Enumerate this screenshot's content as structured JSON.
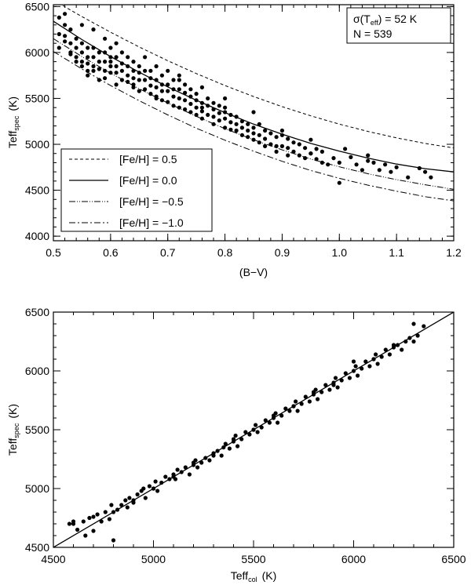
{
  "chart_data": [
    {
      "type": "scatter",
      "xlabel": "(B−V)",
      "ylabel_main": "Teff",
      "ylabel_sub": "spec",
      "ylabel_unit": "(K)",
      "xlim": [
        0.5,
        1.2
      ],
      "ylim": [
        3950,
        6520
      ],
      "x_ticks": [
        0.5,
        0.6,
        0.7,
        0.8,
        0.9,
        1.0,
        1.1,
        1.2
      ],
      "x_tick_labels": [
        "0.5",
        "0.6",
        "0.7",
        "0.8",
        "0.9",
        "1.0",
        "1.1",
        "1.2"
      ],
      "y_ticks": [
        4000,
        4500,
        5000,
        5500,
        6000,
        6500
      ],
      "y_tick_labels": [
        "4000",
        "4500",
        "5000",
        "5500",
        "6000",
        "6500"
      ],
      "annotation_sigma_prefix": "σ(T",
      "annotation_sigma_sub": "eff",
      "annotation_sigma_suffix": ") = 52 K",
      "annotation_n": "N = 539",
      "legend_position": "lower-left",
      "legend": [
        {
          "label": "[Fe/H] = 0.5",
          "dash": "dashed"
        },
        {
          "label": "[Fe/H] = 0.0",
          "dash": "solid"
        },
        {
          "label": "[Fe/H] = −0.5",
          "dash": "dash-dot-dot"
        },
        {
          "label": "[Fe/H] = −1.0",
          "dash": "dash-dot"
        }
      ],
      "lines": [
        {
          "feh": 0.5,
          "dash": "dashed",
          "x": [
            0.5,
            0.55,
            0.6,
            0.65,
            0.7,
            0.75,
            0.8,
            0.85,
            0.9,
            0.95,
            1.0,
            1.05,
            1.1,
            1.15,
            1.2
          ],
          "y": [
            6570,
            6390,
            6220,
            6060,
            5910,
            5770,
            5640,
            5520,
            5410,
            5310,
            5220,
            5140,
            5070,
            5010,
            4960
          ]
        },
        {
          "feh": 0.0,
          "dash": "solid",
          "x": [
            0.5,
            0.55,
            0.6,
            0.65,
            0.7,
            0.75,
            0.8,
            0.85,
            0.9,
            0.95,
            1.0,
            1.05,
            1.1,
            1.15,
            1.2
          ],
          "y": [
            6340,
            6140,
            5955,
            5785,
            5625,
            5480,
            5345,
            5220,
            5110,
            5010,
            4925,
            4850,
            4785,
            4735,
            4700
          ]
        },
        {
          "feh": -0.5,
          "dash": "dash-dot-dot",
          "x": [
            0.5,
            0.55,
            0.6,
            0.65,
            0.7,
            0.75,
            0.8,
            0.85,
            0.9,
            0.95,
            1.0,
            1.05,
            1.1,
            1.15,
            1.2
          ],
          "y": [
            6150,
            5955,
            5775,
            5605,
            5450,
            5305,
            5170,
            5050,
            4940,
            4840,
            4755,
            4680,
            4615,
            4560,
            4510
          ]
        },
        {
          "feh": -1.0,
          "dash": "dash-dot",
          "x": [
            0.5,
            0.55,
            0.6,
            0.65,
            0.7,
            0.75,
            0.8,
            0.85,
            0.9,
            0.95,
            1.0,
            1.05,
            1.1,
            1.15,
            1.2
          ],
          "y": [
            6010,
            5820,
            5640,
            5475,
            5320,
            5175,
            5045,
            4925,
            4815,
            4715,
            4630,
            4555,
            4490,
            4430,
            4385
          ]
        }
      ],
      "points_x": [
        0.51,
        0.51,
        0.51,
        0.52,
        0.52,
        0.52,
        0.52,
        0.53,
        0.53,
        0.53,
        0.53,
        0.54,
        0.54,
        0.54,
        0.54,
        0.55,
        0.55,
        0.55,
        0.55,
        0.55,
        0.56,
        0.56,
        0.56,
        0.56,
        0.57,
        0.57,
        0.57,
        0.57,
        0.57,
        0.58,
        0.58,
        0.58,
        0.58,
        0.59,
        0.59,
        0.59,
        0.59,
        0.59,
        0.6,
        0.6,
        0.6,
        0.6,
        0.61,
        0.61,
        0.61,
        0.61,
        0.61,
        0.62,
        0.62,
        0.62,
        0.62,
        0.63,
        0.63,
        0.63,
        0.63,
        0.64,
        0.64,
        0.64,
        0.64,
        0.65,
        0.65,
        0.65,
        0.65,
        0.66,
        0.66,
        0.66,
        0.66,
        0.67,
        0.67,
        0.67,
        0.67,
        0.68,
        0.68,
        0.68,
        0.68,
        0.69,
        0.69,
        0.69,
        0.69,
        0.7,
        0.7,
        0.7,
        0.7,
        0.71,
        0.71,
        0.71,
        0.71,
        0.72,
        0.72,
        0.72,
        0.72,
        0.73,
        0.73,
        0.73,
        0.73,
        0.74,
        0.74,
        0.74,
        0.74,
        0.75,
        0.75,
        0.75,
        0.75,
        0.76,
        0.76,
        0.76,
        0.76,
        0.77,
        0.77,
        0.77,
        0.78,
        0.78,
        0.78,
        0.78,
        0.79,
        0.79,
        0.79,
        0.8,
        0.8,
        0.8,
        0.8,
        0.81,
        0.81,
        0.81,
        0.82,
        0.82,
        0.82,
        0.83,
        0.83,
        0.83,
        0.84,
        0.84,
        0.84,
        0.85,
        0.85,
        0.85,
        0.86,
        0.86,
        0.86,
        0.87,
        0.87,
        0.87,
        0.88,
        0.88,
        0.89,
        0.89,
        0.89,
        0.9,
        0.9,
        0.91,
        0.91,
        0.91,
        0.92,
        0.92,
        0.93,
        0.93,
        0.94,
        0.94,
        0.95,
        0.95,
        0.96,
        0.96,
        0.97,
        0.97,
        0.98,
        0.99,
        1.0,
        1.01,
        1.02,
        1.03,
        1.04,
        1.05,
        1.06,
        1.07,
        1.08,
        1.09,
        1.12,
        1.14,
        1.15,
        1.16,
        0.56,
        0.6,
        0.64,
        0.68,
        0.72,
        0.76,
        0.8,
        0.85,
        0.9,
        0.95,
        1.0,
        1.05,
        1.1
      ],
      "points_y": [
        6380,
        6200,
        6050,
        6420,
        6300,
        6180,
        6120,
        6250,
        6100,
        6000,
        5980,
        6150,
        6050,
        5950,
        5900,
        6300,
        6100,
        6000,
        5900,
        5850,
        6050,
        5950,
        5880,
        5750,
        6250,
        6050,
        5950,
        5850,
        5800,
        6000,
        5900,
        5820,
        5700,
        6150,
        6000,
        5900,
        5800,
        5720,
        6050,
        5950,
        5850,
        5780,
        6100,
        5950,
        5850,
        5780,
        5650,
        6000,
        5880,
        5800,
        5700,
        5950,
        5850,
        5750,
        5680,
        5900,
        5800,
        5720,
        5620,
        5850,
        5780,
        5700,
        5580,
        5950,
        5800,
        5700,
        5600,
        5800,
        5720,
        5640,
        5550,
        5850,
        5700,
        5620,
        5520,
        5750,
        5650,
        5580,
        5480,
        5800,
        5650,
        5580,
        5460,
        5700,
        5600,
        5520,
        5420,
        5750,
        5600,
        5500,
        5400,
        5650,
        5560,
        5480,
        5380,
        5600,
        5520,
        5440,
        5350,
        5550,
        5480,
        5400,
        5320,
        5620,
        5450,
        5360,
        5280,
        5500,
        5420,
        5320,
        5450,
        5380,
        5300,
        5220,
        5420,
        5340,
        5260,
        5500,
        5350,
        5280,
        5180,
        5320,
        5240,
        5160,
        5300,
        5220,
        5150,
        5250,
        5180,
        5100,
        5220,
        5150,
        5080,
        5180,
        5120,
        5050,
        5220,
        5100,
        5020,
        5150,
        5060,
        4980,
        5120,
        5000,
        5080,
        4980,
        4920,
        5100,
        4980,
        5060,
        4960,
        4880,
        5020,
        4920,
        5000,
        4880,
        4960,
        4850,
        5050,
        4900,
        4950,
        4840,
        4920,
        4800,
        4780,
        4850,
        4580,
        4950,
        4860,
        4780,
        4720,
        4880,
        4800,
        4720,
        4780,
        4700,
        4640,
        4740,
        4700,
        4640,
        5800,
        5900,
        5650,
        5500,
        5700,
        5400,
        5400,
        5350,
        5150,
        4900,
        4800,
        4820,
        4750
      ],
      "fit_x": [],
      "fit_y": []
    },
    {
      "type": "scatter",
      "xlabel_main": "Teff",
      "xlabel_sub": "col",
      "xlabel_unit": "(K)",
      "ylabel_main": "Teff",
      "ylabel_sub": "spec",
      "ylabel_unit": "(K)",
      "xlim": [
        4500,
        6500
      ],
      "ylim": [
        4500,
        6500
      ],
      "x_ticks": [
        4500,
        5000,
        5500,
        6000,
        6500
      ],
      "x_tick_labels": [
        "4500",
        "5000",
        "5500",
        "6000",
        "6500"
      ],
      "y_ticks": [
        4500,
        5000,
        5500,
        6000,
        6500
      ],
      "y_tick_labels": [
        "4500",
        "5000",
        "5500",
        "6000",
        "6500"
      ],
      "identity_line": {
        "x": [
          4500,
          6500
        ],
        "y": [
          4500,
          6500
        ]
      },
      "points_x": [
        4580,
        4600,
        4620,
        4650,
        4660,
        4680,
        4700,
        4720,
        4740,
        4760,
        4780,
        4790,
        4800,
        4820,
        4840,
        4860,
        4870,
        4880,
        4900,
        4920,
        4940,
        4950,
        4960,
        4980,
        5000,
        5010,
        5020,
        5040,
        5060,
        5080,
        5100,
        5110,
        5120,
        5140,
        5160,
        5180,
        5200,
        5210,
        5220,
        5240,
        5260,
        5280,
        5300,
        5320,
        5340,
        5350,
        5360,
        5380,
        5400,
        5410,
        5420,
        5440,
        5460,
        5480,
        5500,
        5510,
        5520,
        5540,
        5560,
        5580,
        5600,
        5610,
        5620,
        5640,
        5660,
        5680,
        5700,
        5710,
        5720,
        5740,
        5760,
        5780,
        5800,
        5810,
        5820,
        5840,
        5860,
        5880,
        5900,
        5910,
        5920,
        5940,
        5960,
        5980,
        6000,
        6010,
        6020,
        6040,
        6060,
        6080,
        6100,
        6110,
        6120,
        6140,
        6160,
        6180,
        6200,
        6220,
        6240,
        6260,
        6280,
        6300,
        6320,
        6350,
        4600,
        4700,
        4800,
        4900,
        5000,
        5100,
        5200,
        5300,
        5400,
        5500,
        5600,
        5700,
        5800,
        5900,
        6000,
        6100,
        6200,
        6300
      ],
      "points_y": [
        4700,
        4720,
        4650,
        4720,
        4600,
        4750,
        4640,
        4780,
        4720,
        4800,
        4740,
        4860,
        4560,
        4820,
        4860,
        4900,
        4840,
        4920,
        4880,
        4950,
        4980,
        5000,
        4920,
        5020,
        5000,
        5060,
        4980,
        5050,
        5100,
        5080,
        5120,
        5080,
        5160,
        5140,
        5180,
        5120,
        5200,
        5240,
        5180,
        5220,
        5260,
        5240,
        5300,
        5320,
        5280,
        5350,
        5380,
        5340,
        5400,
        5450,
        5360,
        5420,
        5480,
        5460,
        5500,
        5540,
        5480,
        5520,
        5580,
        5560,
        5600,
        5640,
        5560,
        5620,
        5680,
        5660,
        5700,
        5740,
        5660,
        5720,
        5780,
        5740,
        5800,
        5840,
        5760,
        5820,
        5880,
        5840,
        5900,
        5940,
        5860,
        5920,
        5980,
        5940,
        6000,
        6040,
        5960,
        6020,
        6080,
        6040,
        6100,
        6140,
        6060,
        6120,
        6180,
        6140,
        6200,
        6220,
        6180,
        6250,
        6280,
        6400,
        6300,
        6380,
        4700,
        4760,
        4800,
        4900,
        5000,
        5100,
        5220,
        5280,
        5420,
        5500,
        5620,
        5700,
        5820,
        5880,
        6080,
        6100,
        6220,
        6250
      ],
      "fit_x": [],
      "fit_y": []
    }
  ]
}
